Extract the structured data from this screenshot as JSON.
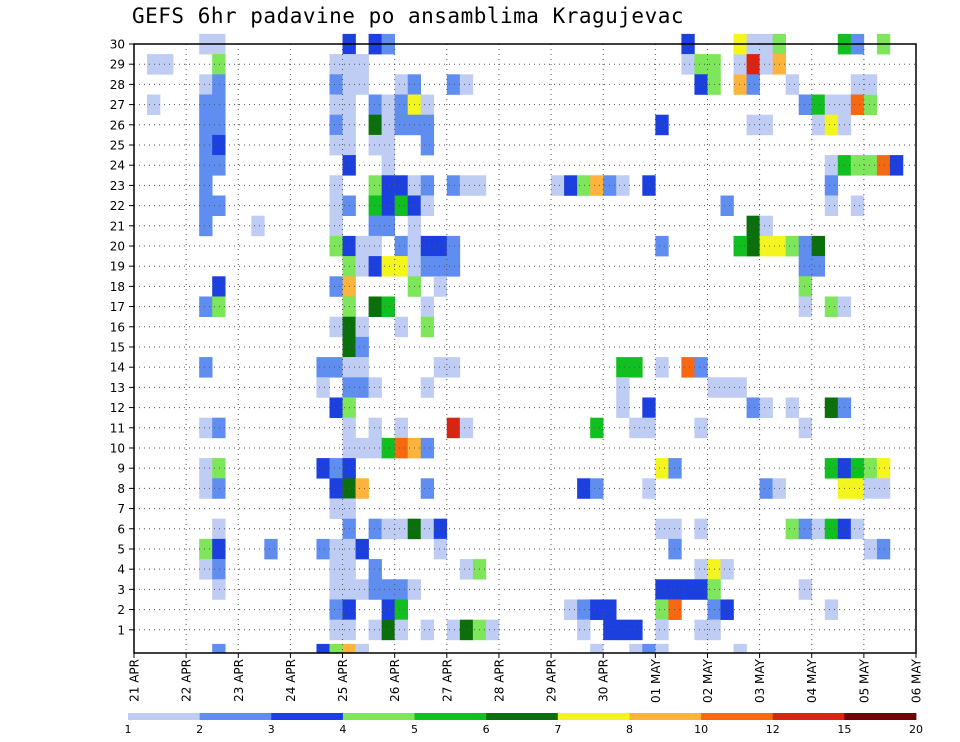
{
  "chart_data": {
    "type": "heatmap",
    "title": "GEFS 6hr padavine po ansamblima Kragujevac",
    "x_ticks": [
      "21 APR",
      "22 APR",
      "23 APR",
      "24 APR",
      "25 APR",
      "26 APR",
      "27 APR",
      "28 APR",
      "29 APR",
      "30 APR",
      "01 MAY",
      "02 MAY",
      "03 MAY",
      "04 MAY",
      "05 MAY",
      "06 MAY"
    ],
    "y_ticks": [
      "1",
      "2",
      "3",
      "4",
      "5",
      "6",
      "7",
      "8",
      "9",
      "10",
      "11",
      "12",
      "13",
      "14",
      "15",
      "16",
      "17",
      "18",
      "19",
      "20",
      "21",
      "22",
      "23",
      "24",
      "25",
      "26",
      "27",
      "28",
      "29",
      "30"
    ],
    "x_range_days": [
      0,
      15
    ],
    "y_range": [
      0,
      30
    ],
    "grid": true,
    "colorbar_ticks": [
      "1",
      "2",
      "3",
      "4",
      "5",
      "6",
      "7",
      "8",
      "10",
      "12",
      "15",
      "20"
    ],
    "colorbar_colors": [
      "#bfcdf4",
      "#5f8ef0",
      "#1c3fe0",
      "#7de65a",
      "#12bf20",
      "#0b6f0b",
      "#f5f51e",
      "#fcb43c",
      "#f76910",
      "#d82410",
      "#6d0606"
    ],
    "cell_days": 0.25,
    "cell_members": 1,
    "cells": [
      [
        1.25,
        30,
        0
      ],
      [
        1.25,
        28,
        0
      ],
      [
        1.25,
        27,
        1
      ],
      [
        1.25,
        26,
        1
      ],
      [
        1.25,
        25,
        1
      ],
      [
        1.25,
        24,
        1
      ],
      [
        1.25,
        23,
        1
      ],
      [
        1.25,
        22,
        1
      ],
      [
        1.25,
        21,
        1
      ],
      [
        1.25,
        17,
        1
      ],
      [
        1.25,
        14,
        1
      ],
      [
        1.25,
        11,
        0
      ],
      [
        1.25,
        9,
        0
      ],
      [
        1.25,
        8,
        0
      ],
      [
        1.25,
        5,
        3
      ],
      [
        1.25,
        4,
        0
      ],
      [
        1.5,
        30,
        0
      ],
      [
        1.5,
        29,
        3
      ],
      [
        1.5,
        28,
        1
      ],
      [
        1.5,
        27,
        1
      ],
      [
        1.5,
        26,
        1
      ],
      [
        1.5,
        25,
        2
      ],
      [
        1.5,
        24,
        1
      ],
      [
        1.5,
        22,
        1
      ],
      [
        1.5,
        18,
        2
      ],
      [
        1.5,
        17,
        3
      ],
      [
        1.5,
        11,
        1
      ],
      [
        1.5,
        9,
        3
      ],
      [
        1.5,
        8,
        1
      ],
      [
        1.5,
        6,
        0
      ],
      [
        1.5,
        5,
        2
      ],
      [
        1.5,
        4,
        1
      ],
      [
        1.5,
        3,
        0
      ],
      [
        1.5,
        0,
        1
      ],
      [
        0.25,
        29,
        0
      ],
      [
        0.5,
        29,
        0
      ],
      [
        0.25,
        27,
        0
      ],
      [
        2.25,
        21,
        0
      ],
      [
        2.5,
        5,
        1
      ],
      [
        3.5,
        14,
        1
      ],
      [
        3.5,
        13,
        0
      ],
      [
        3.5,
        9,
        2
      ],
      [
        3.5,
        5,
        1
      ],
      [
        3.5,
        0,
        2
      ],
      [
        3.75,
        29,
        0
      ],
      [
        3.75,
        28,
        1
      ],
      [
        3.75,
        27,
        0
      ],
      [
        3.75,
        26,
        1
      ],
      [
        3.75,
        25,
        0
      ],
      [
        3.75,
        23,
        0
      ],
      [
        3.75,
        22,
        0
      ],
      [
        3.75,
        21,
        0
      ],
      [
        3.75,
        20,
        3
      ],
      [
        3.75,
        18,
        1
      ],
      [
        3.75,
        16,
        0
      ],
      [
        3.75,
        14,
        1
      ],
      [
        3.75,
        12,
        2
      ],
      [
        3.75,
        9,
        1
      ],
      [
        3.75,
        8,
        2
      ],
      [
        3.75,
        7,
        0
      ],
      [
        3.75,
        5,
        0
      ],
      [
        3.75,
        4,
        0
      ],
      [
        3.75,
        3,
        0
      ],
      [
        3.75,
        2,
        1
      ],
      [
        3.75,
        1,
        0
      ],
      [
        3.75,
        0,
        3
      ],
      [
        4.0,
        30,
        2
      ],
      [
        4.0,
        29,
        0
      ],
      [
        4.0,
        28,
        0
      ],
      [
        4.0,
        27,
        0
      ],
      [
        4.0,
        26,
        0
      ],
      [
        4.0,
        25,
        0
      ],
      [
        4.0,
        24,
        2
      ],
      [
        4.0,
        22,
        1
      ],
      [
        4.0,
        20,
        2
      ],
      [
        4.0,
        19,
        3
      ],
      [
        4.0,
        18,
        7
      ],
      [
        4.0,
        17,
        3
      ],
      [
        4.0,
        16,
        5
      ],
      [
        4.0,
        15,
        5
      ],
      [
        4.0,
        14,
        0
      ],
      [
        4.0,
        13,
        1
      ],
      [
        4.0,
        12,
        3
      ],
      [
        4.0,
        11,
        0
      ],
      [
        4.0,
        10,
        0
      ],
      [
        4.0,
        9,
        2
      ],
      [
        4.0,
        8,
        5
      ],
      [
        4.0,
        7,
        0
      ],
      [
        4.0,
        6,
        1
      ],
      [
        4.0,
        5,
        0
      ],
      [
        4.0,
        4,
        0
      ],
      [
        4.0,
        3,
        0
      ],
      [
        4.0,
        2,
        2
      ],
      [
        4.0,
        1,
        0
      ],
      [
        4.0,
        0,
        7
      ],
      [
        4.25,
        29,
        0
      ],
      [
        4.25,
        28,
        0
      ],
      [
        4.25,
        20,
        0
      ],
      [
        4.25,
        19,
        0
      ],
      [
        4.25,
        16,
        0
      ],
      [
        4.25,
        15,
        1
      ],
      [
        4.25,
        14,
        0
      ],
      [
        4.25,
        13,
        1
      ],
      [
        4.25,
        10,
        0
      ],
      [
        4.25,
        8,
        7
      ],
      [
        4.25,
        5,
        2
      ],
      [
        4.25,
        3,
        0
      ],
      [
        4.25,
        0,
        0
      ],
      [
        4.5,
        30,
        2
      ],
      [
        4.5,
        27,
        1
      ],
      [
        4.5,
        26,
        5
      ],
      [
        4.5,
        25,
        0
      ],
      [
        4.5,
        23,
        3
      ],
      [
        4.5,
        22,
        4
      ],
      [
        4.5,
        21,
        1
      ],
      [
        4.5,
        20,
        0
      ],
      [
        4.5,
        19,
        2
      ],
      [
        4.5,
        17,
        5
      ],
      [
        4.5,
        13,
        0
      ],
      [
        4.5,
        11,
        0
      ],
      [
        4.5,
        10,
        0
      ],
      [
        4.5,
        6,
        1
      ],
      [
        4.5,
        4,
        1
      ],
      [
        4.5,
        3,
        1
      ],
      [
        4.5,
        1,
        0
      ],
      [
        4.75,
        30,
        1
      ],
      [
        4.75,
        27,
        0
      ],
      [
        4.75,
        26,
        0
      ],
      [
        4.75,
        25,
        0
      ],
      [
        4.75,
        24,
        0
      ],
      [
        4.75,
        23,
        2
      ],
      [
        4.75,
        22,
        2
      ],
      [
        4.75,
        21,
        1
      ],
      [
        4.75,
        19,
        6
      ],
      [
        4.75,
        17,
        4
      ],
      [
        4.75,
        10,
        4
      ],
      [
        4.75,
        6,
        0
      ],
      [
        4.75,
        3,
        1
      ],
      [
        4.75,
        2,
        2
      ],
      [
        4.75,
        1,
        5
      ],
      [
        5.0,
        28,
        0
      ],
      [
        5.0,
        27,
        1
      ],
      [
        5.0,
        26,
        1
      ],
      [
        5.0,
        23,
        2
      ],
      [
        5.0,
        22,
        4
      ],
      [
        5.0,
        20,
        1
      ],
      [
        5.0,
        19,
        6
      ],
      [
        5.0,
        16,
        0
      ],
      [
        5.0,
        11,
        0
      ],
      [
        5.0,
        10,
        8
      ],
      [
        5.0,
        6,
        0
      ],
      [
        5.0,
        3,
        1
      ],
      [
        5.0,
        2,
        4
      ],
      [
        5.0,
        1,
        0
      ],
      [
        5.25,
        28,
        1
      ],
      [
        5.25,
        27,
        6
      ],
      [
        5.25,
        26,
        1
      ],
      [
        5.25,
        23,
        0
      ],
      [
        5.25,
        22,
        2
      ],
      [
        5.25,
        21,
        0
      ],
      [
        5.25,
        20,
        0
      ],
      [
        5.25,
        19,
        0
      ],
      [
        5.25,
        18,
        3
      ],
      [
        5.25,
        10,
        7
      ],
      [
        5.25,
        6,
        5
      ],
      [
        5.25,
        3,
        0
      ],
      [
        5.5,
        27,
        0
      ],
      [
        5.5,
        26,
        1
      ],
      [
        5.5,
        25,
        1
      ],
      [
        5.5,
        23,
        1
      ],
      [
        5.5,
        22,
        0
      ],
      [
        5.5,
        20,
        2
      ],
      [
        5.5,
        19,
        1
      ],
      [
        5.5,
        17,
        0
      ],
      [
        5.5,
        16,
        3
      ],
      [
        5.5,
        13,
        0
      ],
      [
        5.5,
        10,
        1
      ],
      [
        5.5,
        8,
        1
      ],
      [
        5.5,
        6,
        0
      ],
      [
        5.5,
        1,
        0
      ],
      [
        5.75,
        20,
        2
      ],
      [
        5.75,
        19,
        1
      ],
      [
        5.75,
        18,
        0
      ],
      [
        5.75,
        14,
        0
      ],
      [
        5.75,
        6,
        2
      ],
      [
        5.75,
        5,
        0
      ],
      [
        6.0,
        28,
        1
      ],
      [
        6.0,
        23,
        1
      ],
      [
        6.0,
        20,
        1
      ],
      [
        6.0,
        19,
        1
      ],
      [
        6.0,
        14,
        0
      ],
      [
        6.0,
        11,
        9
      ],
      [
        6.0,
        1,
        0
      ],
      [
        6.25,
        28,
        0
      ],
      [
        6.25,
        23,
        0
      ],
      [
        6.25,
        11,
        0
      ],
      [
        6.25,
        4,
        0
      ],
      [
        6.25,
        1,
        5
      ],
      [
        6.5,
        23,
        0
      ],
      [
        6.5,
        4,
        3
      ],
      [
        6.5,
        1,
        3
      ],
      [
        6.75,
        1,
        0
      ],
      [
        8.0,
        23,
        0
      ],
      [
        8.25,
        23,
        2
      ],
      [
        8.5,
        23,
        3
      ],
      [
        8.75,
        23,
        7
      ],
      [
        9.0,
        23,
        1
      ],
      [
        9.25,
        23,
        0
      ],
      [
        8.25,
        2,
        0
      ],
      [
        8.5,
        2,
        1
      ],
      [
        8.5,
        8,
        2
      ],
      [
        8.5,
        1,
        0
      ],
      [
        8.75,
        8,
        1
      ],
      [
        8.75,
        2,
        2
      ],
      [
        8.75,
        0,
        0
      ],
      [
        8.75,
        11,
        4
      ],
      [
        9.0,
        2,
        2
      ],
      [
        9.0,
        1,
        2
      ],
      [
        9.25,
        14,
        4
      ],
      [
        9.25,
        13,
        0
      ],
      [
        9.25,
        12,
        0
      ],
      [
        9.25,
        1,
        2
      ],
      [
        9.5,
        14,
        4
      ],
      [
        9.5,
        11,
        0
      ],
      [
        9.5,
        1,
        2
      ],
      [
        9.5,
        0,
        0
      ],
      [
        9.75,
        23,
        2
      ],
      [
        9.75,
        12,
        2
      ],
      [
        9.75,
        11,
        0
      ],
      [
        9.75,
        8,
        0
      ],
      [
        9.75,
        0,
        1
      ],
      [
        10.0,
        26,
        2
      ],
      [
        10.0,
        20,
        1
      ],
      [
        10.0,
        14,
        0
      ],
      [
        10.0,
        3,
        2
      ],
      [
        10.0,
        2,
        3
      ],
      [
        10.0,
        1,
        0
      ],
      [
        10.0,
        0,
        0
      ],
      [
        10.0,
        9,
        6
      ],
      [
        10.0,
        6,
        0
      ],
      [
        10.25,
        9,
        1
      ],
      [
        10.25,
        6,
        0
      ],
      [
        10.25,
        5,
        1
      ],
      [
        10.25,
        3,
        2
      ],
      [
        10.25,
        2,
        8
      ],
      [
        10.5,
        14,
        8
      ],
      [
        10.5,
        3,
        2
      ],
      [
        10.75,
        14,
        1
      ],
      [
        10.75,
        11,
        0
      ],
      [
        10.75,
        6,
        0
      ],
      [
        10.75,
        4,
        0
      ],
      [
        10.75,
        3,
        2
      ],
      [
        10.75,
        1,
        0
      ],
      [
        10.5,
        30,
        2
      ],
      [
        10.5,
        29,
        0
      ],
      [
        10.75,
        29,
        3
      ],
      [
        10.75,
        28,
        2
      ],
      [
        11.0,
        29,
        3
      ],
      [
        11.0,
        28,
        3
      ],
      [
        11.0,
        13,
        0
      ],
      [
        11.0,
        4,
        6
      ],
      [
        11.0,
        3,
        3
      ],
      [
        11.0,
        2,
        1
      ],
      [
        11.0,
        1,
        0
      ],
      [
        11.25,
        13,
        0
      ],
      [
        11.25,
        4,
        0
      ],
      [
        11.25,
        2,
        2
      ],
      [
        11.5,
        13,
        0
      ],
      [
        11.5,
        0,
        0
      ],
      [
        11.25,
        22,
        1
      ],
      [
        11.5,
        28,
        7
      ],
      [
        11.5,
        29,
        0
      ],
      [
        11.5,
        30,
        6
      ],
      [
        11.75,
        30,
        0
      ],
      [
        11.75,
        29,
        9
      ],
      [
        11.75,
        28,
        1
      ],
      [
        11.75,
        26,
        0
      ],
      [
        11.75,
        21,
        5
      ],
      [
        11.75,
        20,
        5
      ],
      [
        11.75,
        12,
        1
      ],
      [
        11.5,
        20,
        4
      ],
      [
        12.0,
        30,
        0
      ],
      [
        12.0,
        26,
        0
      ],
      [
        12.0,
        20,
        6
      ],
      [
        12.0,
        21,
        0
      ],
      [
        12.0,
        29,
        0
      ],
      [
        12.0,
        12,
        0
      ],
      [
        12.0,
        8,
        1
      ],
      [
        12.25,
        30,
        3
      ],
      [
        12.25,
        29,
        7
      ],
      [
        12.25,
        20,
        6
      ],
      [
        12.25,
        8,
        0
      ],
      [
        12.5,
        28,
        0
      ],
      [
        12.5,
        20,
        3
      ],
      [
        12.5,
        12,
        0
      ],
      [
        12.5,
        6,
        3
      ],
      [
        12.75,
        27,
        1
      ],
      [
        12.75,
        20,
        1
      ],
      [
        12.75,
        19,
        1
      ],
      [
        12.75,
        18,
        3
      ],
      [
        12.75,
        17,
        0
      ],
      [
        12.75,
        11,
        0
      ],
      [
        12.75,
        6,
        1
      ],
      [
        12.75,
        3,
        0
      ],
      [
        13.0,
        27,
        4
      ],
      [
        13.0,
        26,
        0
      ],
      [
        13.0,
        20,
        5
      ],
      [
        13.0,
        19,
        1
      ],
      [
        13.0,
        6,
        0
      ],
      [
        13.25,
        27,
        0
      ],
      [
        13.25,
        26,
        6
      ],
      [
        13.25,
        24,
        0
      ],
      [
        13.25,
        23,
        1
      ],
      [
        13.25,
        22,
        0
      ],
      [
        13.25,
        17,
        3
      ],
      [
        13.25,
        12,
        5
      ],
      [
        13.25,
        9,
        4
      ],
      [
        13.25,
        6,
        4
      ],
      [
        13.25,
        2,
        0
      ],
      [
        13.5,
        30,
        4
      ],
      [
        13.5,
        27,
        0
      ],
      [
        13.5,
        26,
        0
      ],
      [
        13.5,
        17,
        0
      ],
      [
        13.5,
        12,
        1
      ],
      [
        13.5,
        9,
        2
      ],
      [
        13.5,
        8,
        6
      ],
      [
        13.5,
        6,
        2
      ],
      [
        13.5,
        24,
        4
      ],
      [
        13.75,
        30,
        1
      ],
      [
        13.75,
        28,
        0
      ],
      [
        13.75,
        27,
        8
      ],
      [
        13.75,
        24,
        3
      ],
      [
        13.75,
        22,
        0
      ],
      [
        13.75,
        9,
        4
      ],
      [
        13.75,
        8,
        6
      ],
      [
        13.75,
        6,
        0
      ],
      [
        14.0,
        27,
        3
      ],
      [
        14.0,
        28,
        0
      ],
      [
        14.0,
        24,
        3
      ],
      [
        14.0,
        9,
        3
      ],
      [
        14.0,
        8,
        0
      ],
      [
        14.0,
        5,
        0
      ],
      [
        14.25,
        30,
        3
      ],
      [
        14.25,
        24,
        8
      ],
      [
        14.25,
        9,
        6
      ],
      [
        14.25,
        8,
        0
      ],
      [
        14.25,
        5,
        1
      ],
      [
        14.5,
        24,
        2
      ]
    ]
  }
}
